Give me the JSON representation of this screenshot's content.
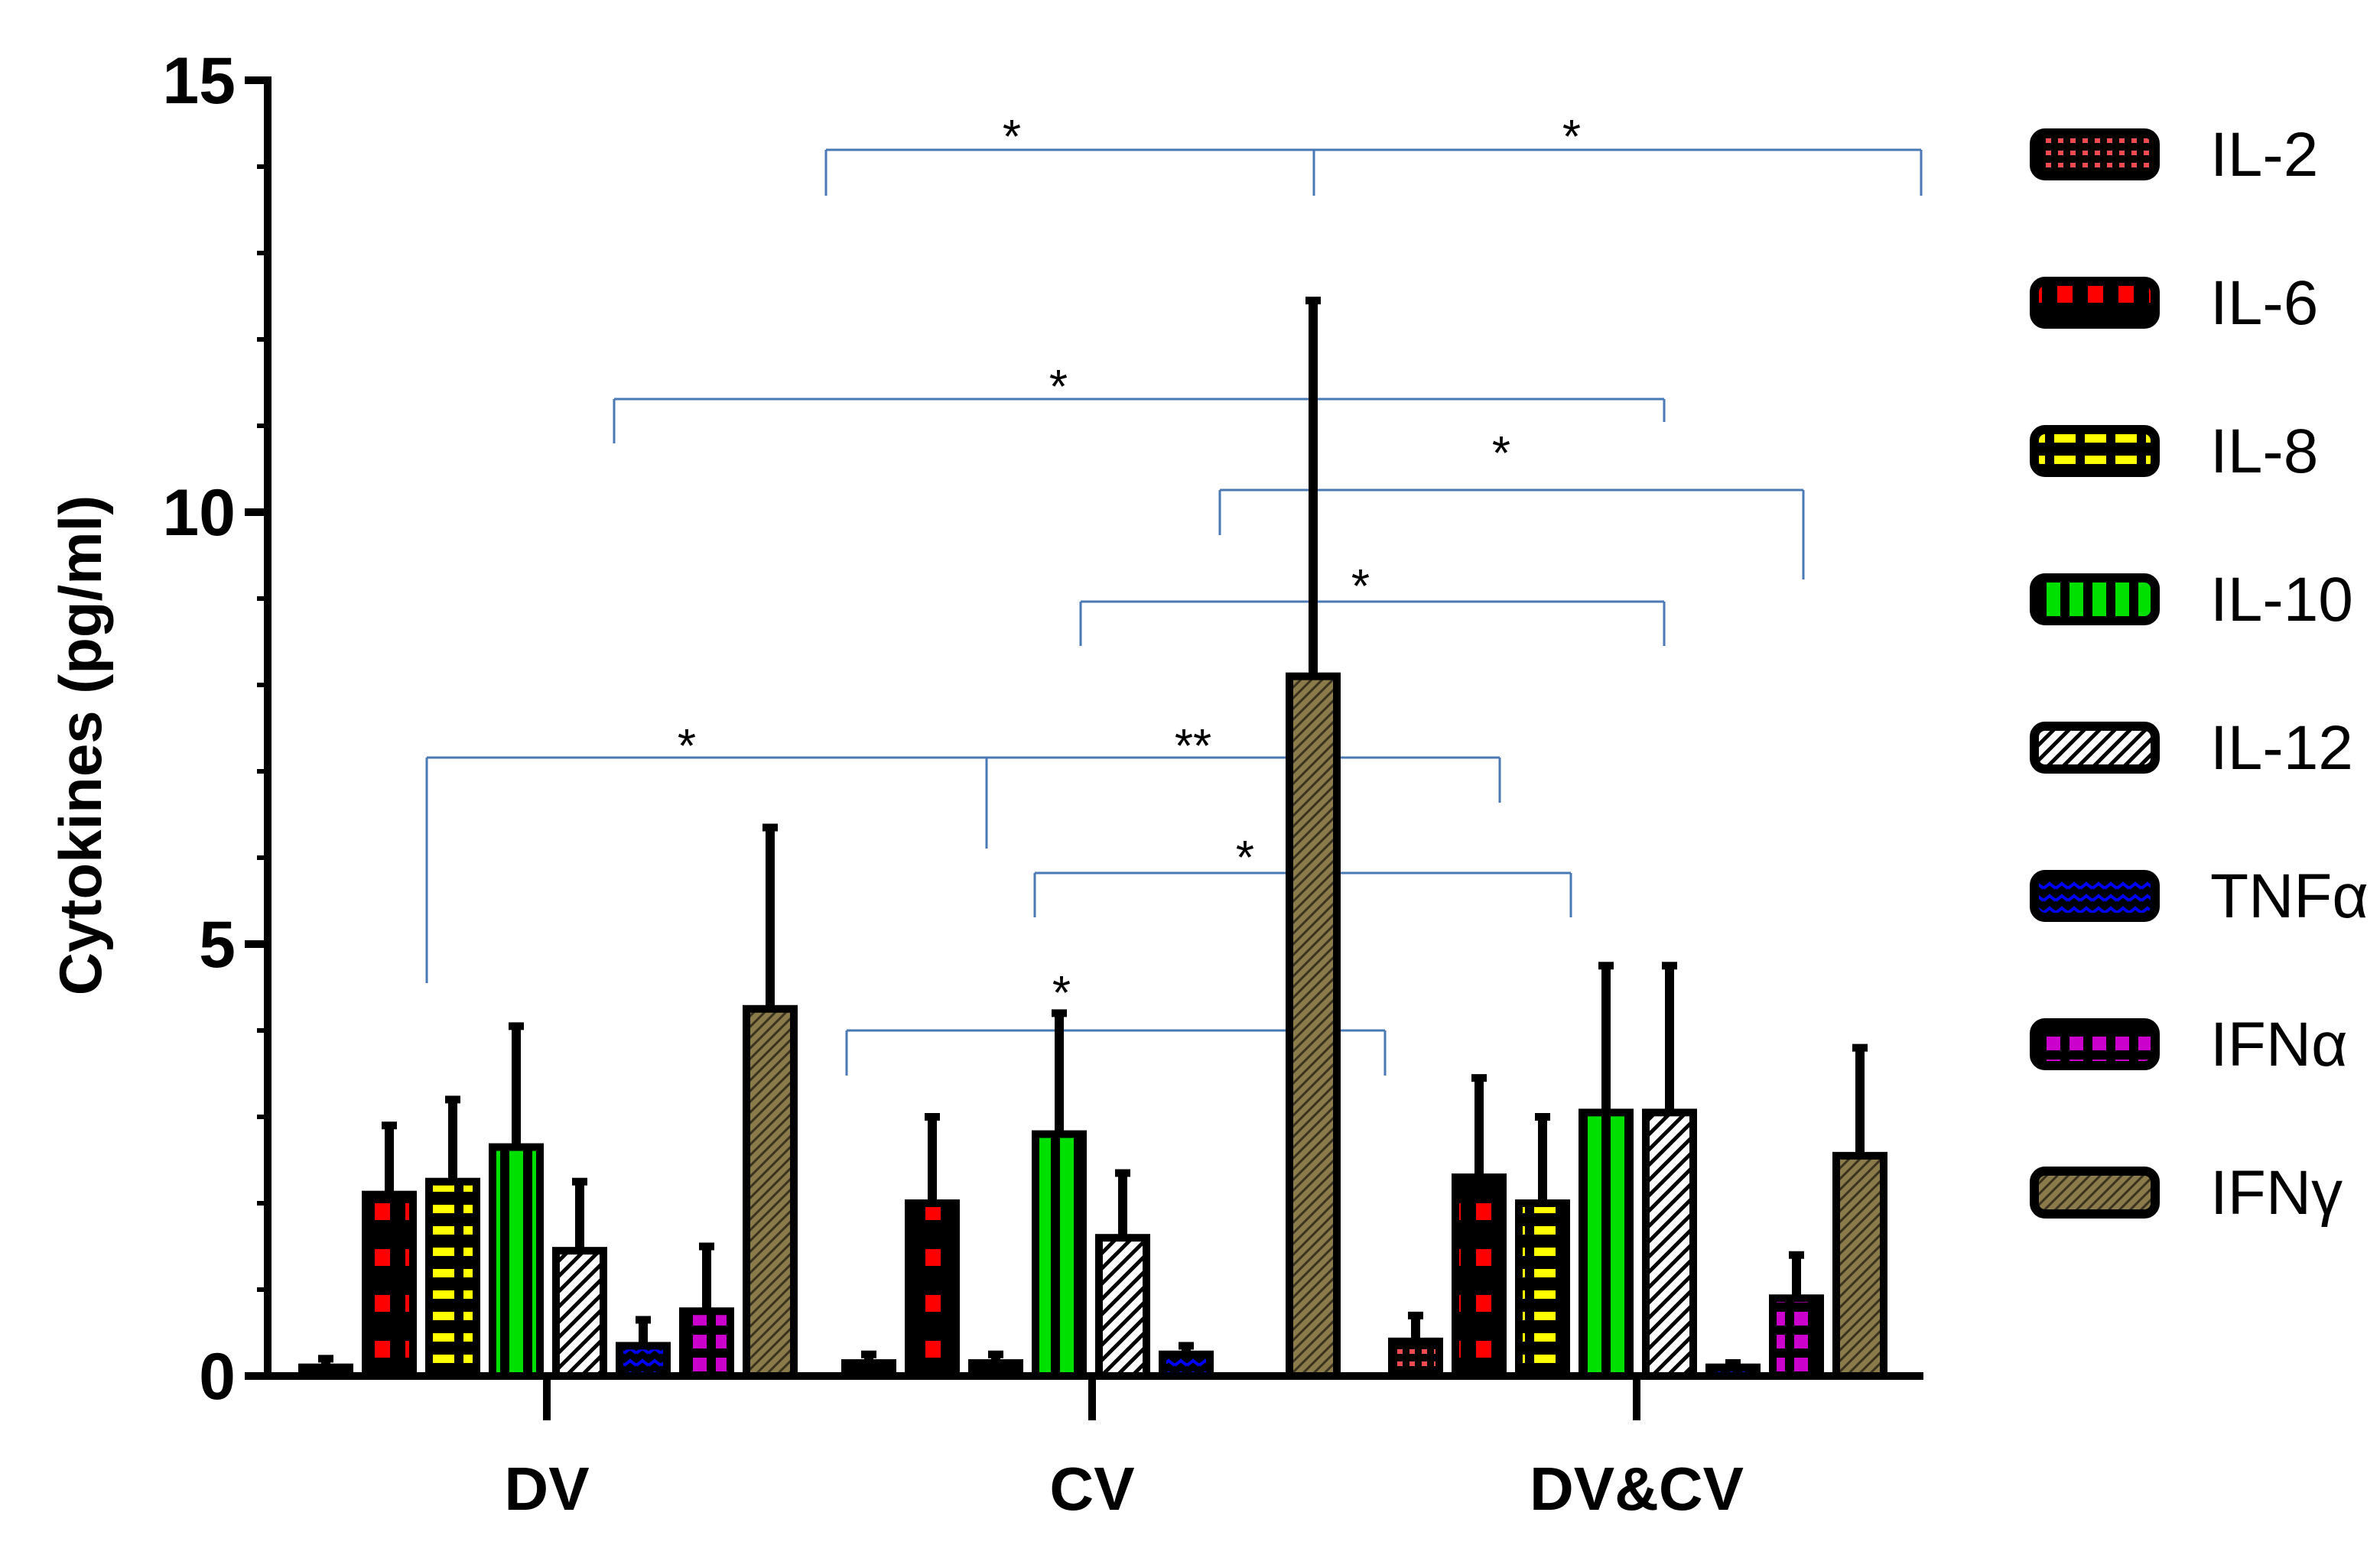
{
  "chart_data": {
    "type": "bar",
    "title": "",
    "xlabel": "",
    "ylabel": "Cytokines (pg/ml)",
    "ylim": [
      0,
      15
    ],
    "yticks": [
      0,
      5,
      10,
      15
    ],
    "grid": false,
    "legend_position": "right",
    "categories": [
      "DV",
      "CV",
      "DV&CV"
    ],
    "series": [
      {
        "name": "IL-2",
        "color": "#ff4d4d",
        "pattern": "red-dots",
        "values": [
          0.1,
          0.15,
          0.4
        ],
        "errors": [
          0.1,
          0.1,
          0.3
        ]
      },
      {
        "name": "IL-6",
        "color": "#ff0000",
        "pattern": "red-squares",
        "values": [
          2.1,
          2.0,
          2.3
        ],
        "errors": [
          0.8,
          1.0,
          1.15
        ]
      },
      {
        "name": "IL-8",
        "color": "#ffff00",
        "pattern": "yellow-bars",
        "values": [
          2.25,
          0.15,
          2.0
        ],
        "errors": [
          0.95,
          0.1,
          1.0
        ]
      },
      {
        "name": "IL-10",
        "color": "#00e000",
        "pattern": "green-stripe",
        "values": [
          2.65,
          2.8,
          3.05
        ],
        "errors": [
          1.4,
          1.4,
          1.7
        ]
      },
      {
        "name": "IL-12",
        "color": "#ffffff",
        "pattern": "white-hatch",
        "values": [
          1.45,
          1.6,
          3.05
        ],
        "errors": [
          0.8,
          0.75,
          1.7
        ]
      },
      {
        "name": "TNFα",
        "color": "#0000ff",
        "pattern": "blue-wave",
        "values": [
          0.35,
          0.25,
          0.1
        ],
        "errors": [
          0.3,
          0.1,
          0.05
        ]
      },
      {
        "name": "IFNα",
        "color": "#cc00cc",
        "pattern": "magenta-grid",
        "values": [
          0.75,
          0.0,
          0.9
        ],
        "errors": [
          0.75,
          0.0,
          0.5
        ]
      },
      {
        "name": "IFNγ",
        "color": "#8b7a4a",
        "pattern": "tan-hatch",
        "values": [
          4.25,
          8.1,
          2.55
        ],
        "errors": [
          2.1,
          4.35,
          1.25
        ]
      }
    ],
    "significance": [
      {
        "label": "*",
        "from": "DV&CV IL-2",
        "to": "CV IFNγ + DV&CV IFNγ",
        "level": 14.3
      },
      {
        "label": "*",
        "from": "DV IL-12",
        "to": "DV&CV IL-12",
        "level": 11.4
      },
      {
        "label": "*",
        "from": "CV IL-12",
        "to": "DV&CV IFNα",
        "level": 10.35
      },
      {
        "label": "*",
        "from": "CV IL-10",
        "to": "DV&CV IL-12",
        "level": 9.05
      },
      {
        "label": "*",
        "from": "DV IL-6",
        "to": "CV IL-8",
        "level": 7.25
      },
      {
        "label": "**",
        "from": "CV IL-8",
        "to": "DV&CV IL-10",
        "level": 7.25
      },
      {
        "label": "*",
        "from": "CV IL-10",
        "to": "DV&CV IL-10",
        "level": 5.85
      },
      {
        "label": "*",
        "from": "CV IL-2",
        "to": "CV IFNα",
        "level": 4.0
      }
    ]
  }
}
